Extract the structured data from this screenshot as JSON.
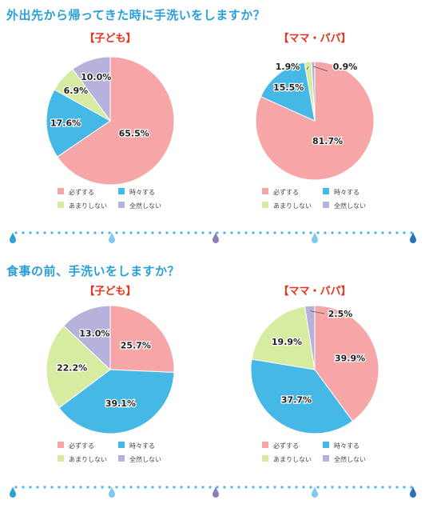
{
  "questions": [
    {
      "title": "外出先から帰ってきた時に手洗いをしますか？",
      "charts": [
        {
          "group": "【子ども】",
          "values": [
            65.5,
            17.6,
            6.9,
            10.0
          ],
          "labels": [
            "65.5%",
            "17.6%",
            "6.9%",
            "10.0%"
          ]
        },
        {
          "group": "【ママ・パパ】",
          "values": [
            81.7,
            15.5,
            1.9,
            0.9
          ],
          "labels": [
            "81.7%",
            "15.5%",
            "1.9%",
            "0.9%"
          ]
        }
      ]
    },
    {
      "title": "食事の前、手洗いをしますか？",
      "charts": [
        {
          "group": "【子ども】",
          "values": [
            25.7,
            39.1,
            22.2,
            13.0
          ],
          "labels": [
            "25.7%",
            "39.1%",
            "22.2%",
            "13.0%"
          ]
        },
        {
          "group": "【ママ・パパ】",
          "values": [
            39.9,
            37.7,
            19.9,
            2.5
          ],
          "labels": [
            "39.9%",
            "37.7%",
            "19.9%",
            "2.5%"
          ]
        }
      ]
    }
  ],
  "legend": [
    "必ずする",
    "時々する",
    "あまりしない",
    "全然しない"
  ],
  "colors": {
    "title": "#2b9fd8",
    "group_title": "#e8331e",
    "series": [
      "#f7a6a8",
      "#45b8e6",
      "#d6eca0",
      "#b7b2db"
    ],
    "dots": "#45b8e6",
    "drops": [
      "#2b9fd8",
      "#7fc9ef",
      "#8a7fc0",
      "#7fc9ef",
      "#2b6fc0"
    ]
  },
  "chart_data": [
    {
      "type": "pie",
      "title": "外出先から帰ってきた時に手洗いをしますか？ 【子ども】",
      "categories": [
        "必ずする",
        "時々する",
        "あまりしない",
        "全然しない"
      ],
      "values": [
        65.5,
        17.6,
        6.9,
        10.0
      ]
    },
    {
      "type": "pie",
      "title": "外出先から帰ってきた時に手洗いをしますか？ 【ママ・パパ】",
      "categories": [
        "必ずする",
        "時々する",
        "あまりしない",
        "全然しない"
      ],
      "values": [
        81.7,
        15.5,
        1.9,
        0.9
      ]
    },
    {
      "type": "pie",
      "title": "食事の前、手洗いをしますか？ 【子ども】",
      "categories": [
        "必ずする",
        "時々する",
        "あまりしない",
        "全然しない"
      ],
      "values": [
        25.7,
        39.1,
        22.2,
        13.0
      ]
    },
    {
      "type": "pie",
      "title": "食事の前、手洗いをしますか？ 【ママ・パパ】",
      "categories": [
        "必ずする",
        "時々する",
        "あまりしない",
        "全然しない"
      ],
      "values": [
        39.9,
        37.7,
        19.9,
        2.5
      ]
    }
  ]
}
